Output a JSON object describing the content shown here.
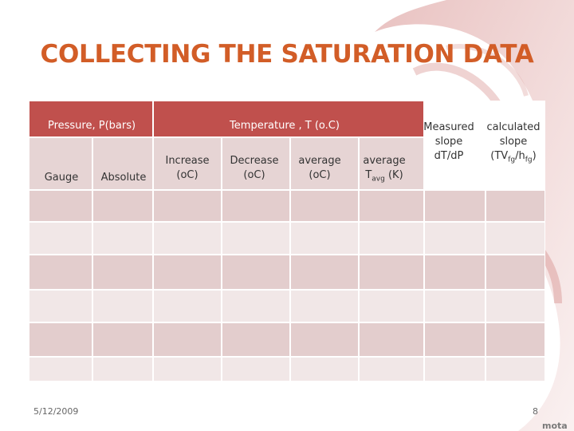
{
  "slide": {
    "title": "COLLECTING THE SATURATION DATA",
    "date": "5/12/2009",
    "page_number": "8",
    "logo_text": "mota",
    "accent_color": "#c0504d",
    "title_color": "#d25d27"
  },
  "table": {
    "pressure_header": "Pressure, P(bars)",
    "temperature_header": "Temperature , T (o.C)",
    "columns": {
      "gauge": "Gauge",
      "absolute": "Absolute",
      "increase": [
        "Increase",
        "(oC)"
      ],
      "decrease": [
        "Decrease",
        "(oC)"
      ],
      "average": [
        "average",
        "(oC)"
      ],
      "average_k": [
        "average",
        "T",
        "avg",
        " (K)"
      ],
      "measured": [
        "Measured",
        "slope",
        "dT/dP"
      ],
      "calculated": [
        "calculated",
        "slope",
        "(TV",
        "fg",
        "/h",
        "fg",
        ")"
      ]
    },
    "empty_rows": 6
  }
}
